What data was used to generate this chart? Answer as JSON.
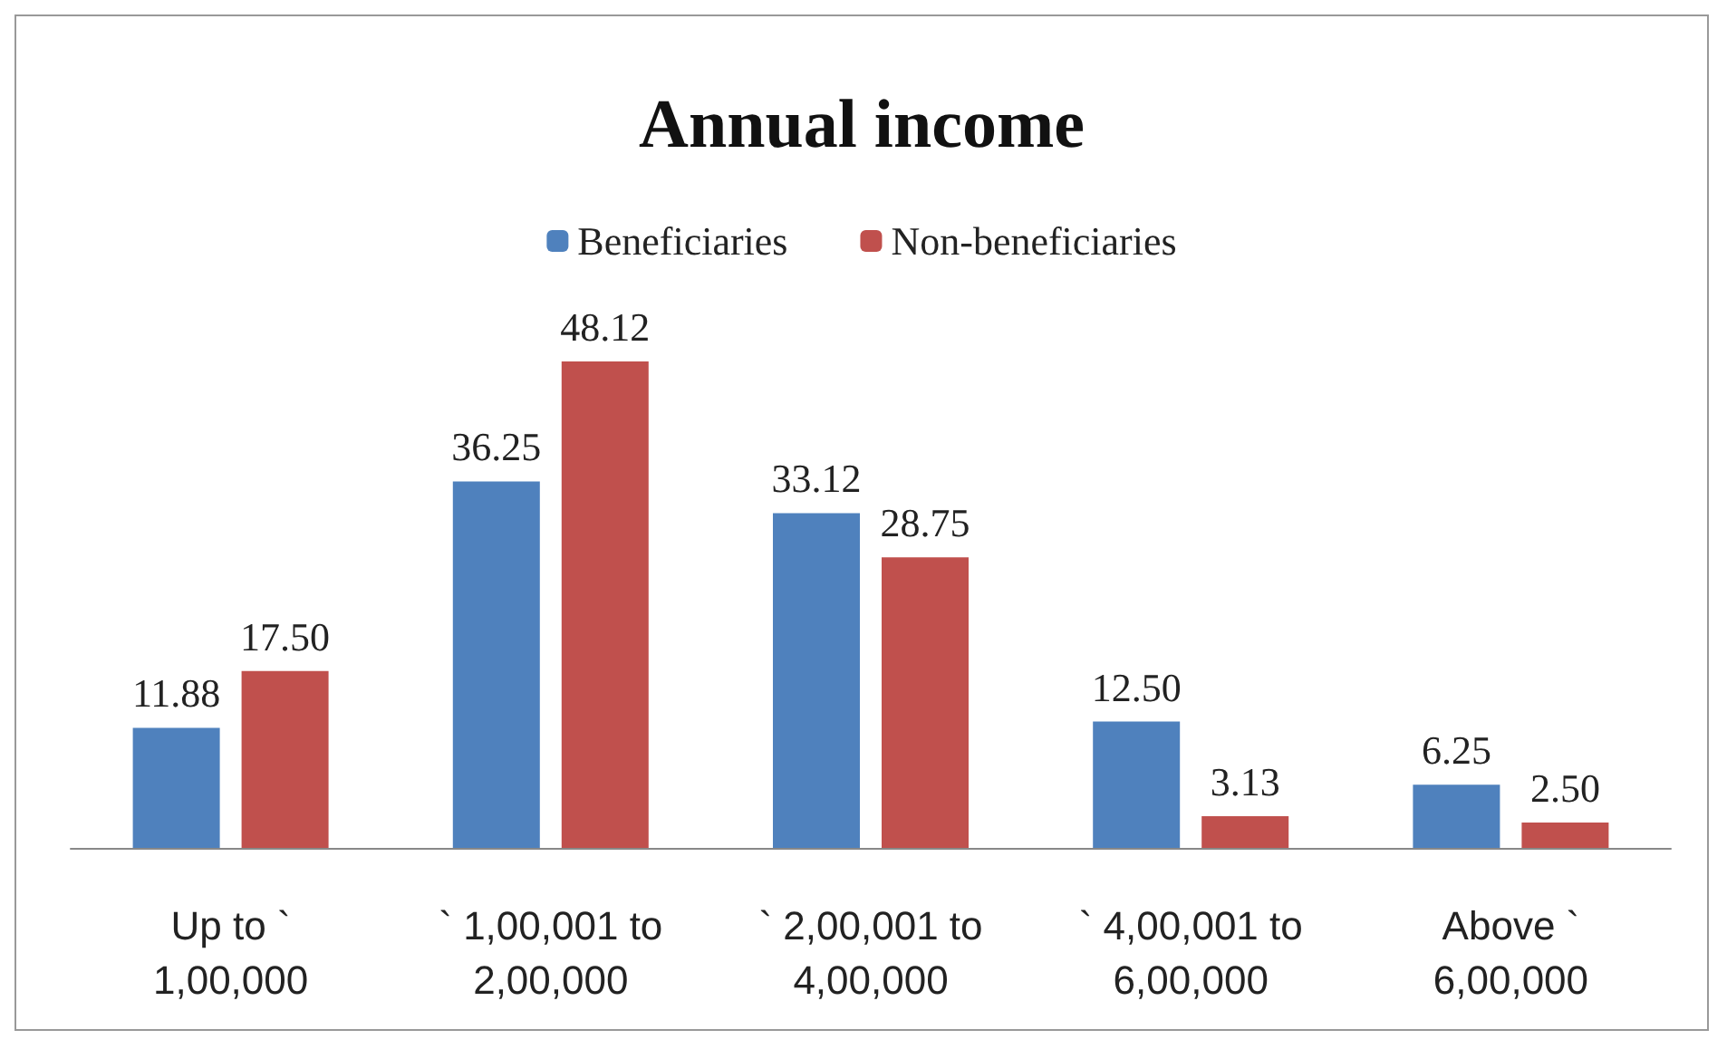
{
  "chart_data": {
    "type": "bar",
    "title": "Annual income",
    "categories": [
      "Up to ` 1,00,000",
      "` 1,00,001 to 2,00,000",
      "` 2,00,001 to 4,00,000",
      "` 4,00,001 to 6,00,000",
      "Above ` 6,00,000"
    ],
    "series": [
      {
        "name": "Beneficiaries",
        "color": "#4f81bd",
        "values": [
          11.88,
          36.25,
          33.12,
          12.5,
          6.25
        ],
        "value_labels": [
          "11.88",
          "36.25",
          "33.12",
          "12.50",
          "6.25"
        ]
      },
      {
        "name": "Non-beneficiaries",
        "color": "#c0504d",
        "values": [
          17.5,
          48.12,
          28.75,
          3.13,
          2.5
        ],
        "value_labels": [
          "17.50",
          "48.12",
          "28.75",
          "3.13",
          "2.50"
        ]
      }
    ],
    "legend": "top",
    "grid": false,
    "tick_labels": "x"
  }
}
